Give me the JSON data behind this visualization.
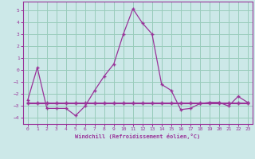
{
  "x": [
    0,
    1,
    2,
    3,
    4,
    5,
    6,
    7,
    8,
    9,
    10,
    11,
    12,
    13,
    14,
    15,
    16,
    17,
    18,
    19,
    20,
    21,
    22,
    23
  ],
  "y_main": [
    -2.5,
    0.2,
    -3.2,
    -3.2,
    -3.2,
    -3.8,
    -3.0,
    -1.7,
    -0.5,
    0.5,
    3.0,
    5.1,
    3.9,
    3.0,
    -1.2,
    -1.7,
    -3.3,
    -3.2,
    -2.8,
    -2.7,
    -2.7,
    -3.0,
    -2.2,
    -2.7
  ],
  "y_flat1": [
    -2.8,
    -2.8,
    -2.8,
    -2.8,
    -2.8,
    -2.8,
    -2.8,
    -2.8,
    -2.8,
    -2.8,
    -2.8,
    -2.8,
    -2.8,
    -2.8,
    -2.8,
    -2.8,
    -2.8,
    -2.8,
    -2.8,
    -2.8,
    -2.8,
    -2.8,
    -2.8,
    -2.8
  ],
  "y_flat2": [
    -2.7,
    -2.7,
    -2.7,
    -2.7,
    -2.7,
    -2.7,
    -2.7,
    -2.7,
    -2.7,
    -2.7,
    -2.7,
    -2.7,
    -2.7,
    -2.7,
    -2.7,
    -2.7,
    -2.7,
    -2.7,
    -2.7,
    -2.7,
    -2.7,
    -2.7,
    -2.7,
    -2.7
  ],
  "line_color": "#993399",
  "bg_color": "#cce8e8",
  "grid_color": "#99ccbb",
  "xlabel": "Windchill (Refroidissement éolien,°C)",
  "ylim": [
    -4.5,
    5.7
  ],
  "yticks": [
    -4,
    -3,
    -2,
    -1,
    0,
    1,
    2,
    3,
    4,
    5
  ],
  "xticks": [
    0,
    1,
    2,
    3,
    4,
    5,
    6,
    7,
    8,
    9,
    10,
    11,
    12,
    13,
    14,
    15,
    16,
    17,
    18,
    19,
    20,
    21,
    22,
    23
  ]
}
